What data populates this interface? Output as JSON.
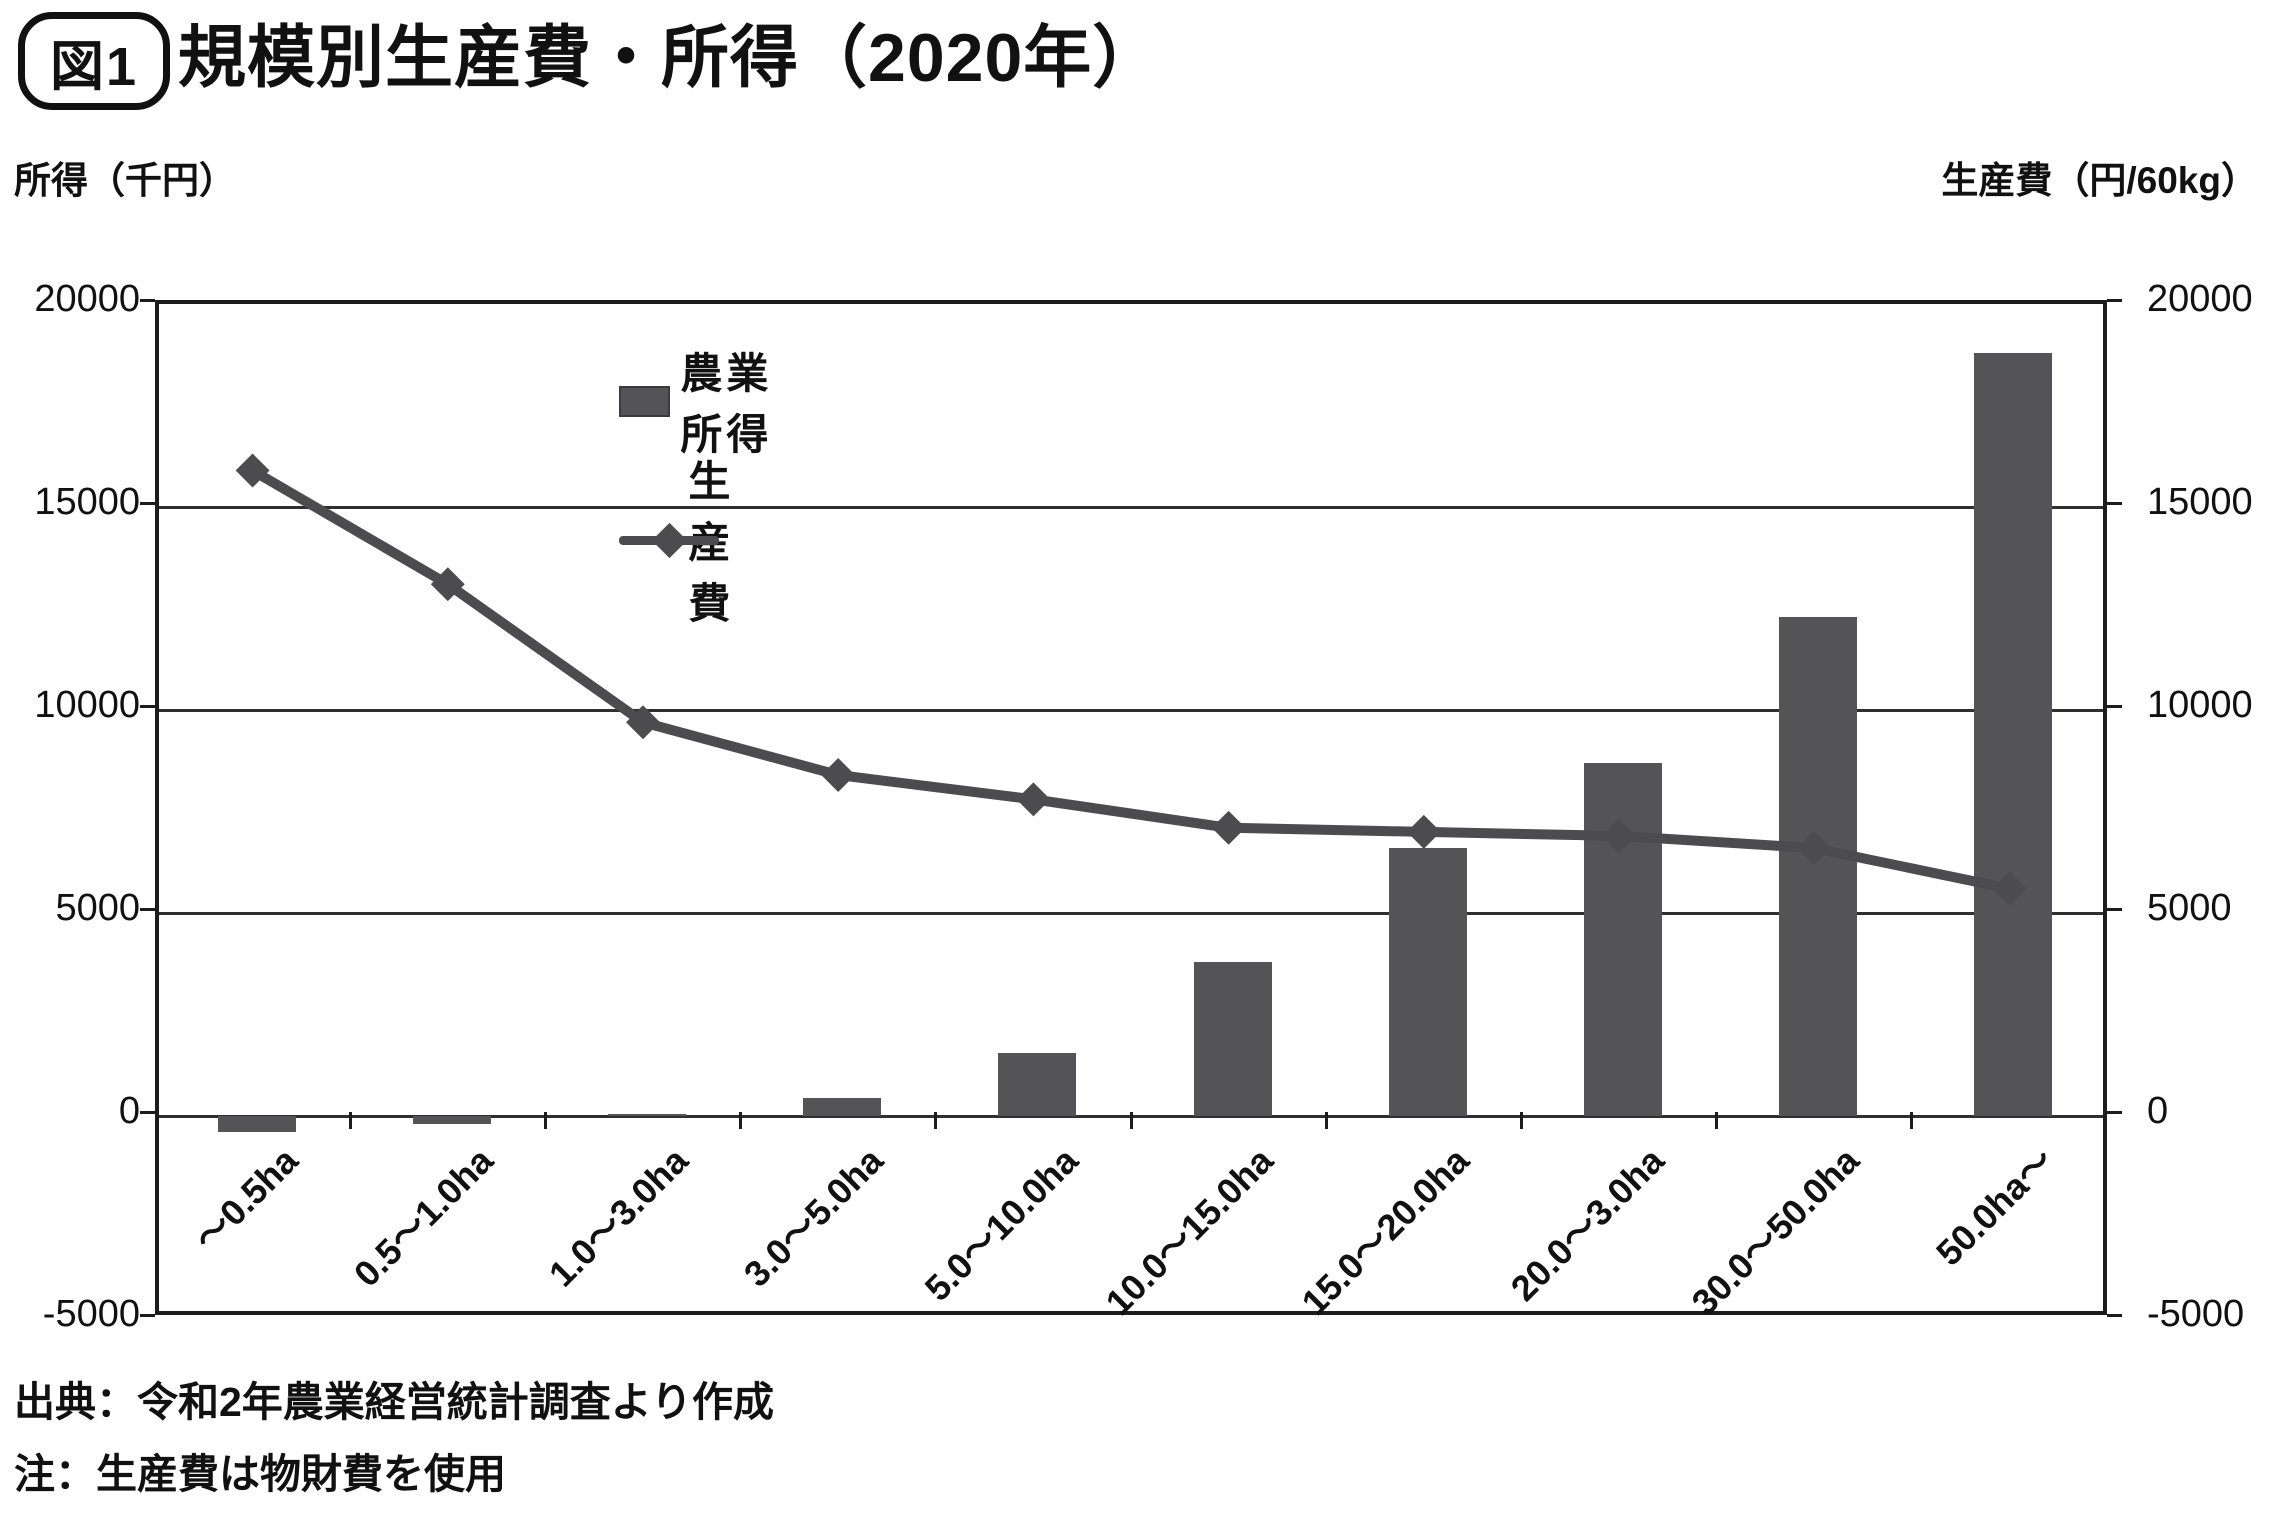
{
  "figure_label": "図1",
  "title": "規模別生産費・所得（2020年）",
  "left_axis_caption": "所得（千円）",
  "right_axis_caption": "生産費（円/60kg）",
  "source_note": "出典：令和2年農業経営統計調査より作成",
  "usage_note": "注：生産費は物財費を使用",
  "colors": {
    "bar": "#545457",
    "line": "#4c4c4f",
    "axis": "#1c1c1c",
    "grid": "#2f2f2f",
    "text": "#111111",
    "background": "#ffffff"
  },
  "chart_data": {
    "type": "bar",
    "subtype": "bar-and-line-dual-axis",
    "title": "規模別生産費・所得（2020年）",
    "categories": [
      "～0.5ha",
      "0.5～1.0ha",
      "1.0～3.0ha",
      "3.0～5.0ha",
      "5.0～10.0ha",
      "10.0～15.0ha",
      "15.0～20.0ha",
      "20.0～3.0ha",
      "30.0～50.0ha",
      "50.0ha～"
    ],
    "series": [
      {
        "name": "農業所得",
        "type": "bar",
        "axis": "left",
        "unit": "千円",
        "values": [
          -400,
          -200,
          50,
          450,
          1550,
          3800,
          6600,
          8700,
          12300,
          18800
        ]
      },
      {
        "name": "生産費",
        "type": "line",
        "marker": "diamond",
        "axis": "right",
        "unit": "円/60kg",
        "values": [
          15800,
          13000,
          9600,
          8300,
          7700,
          7000,
          6900,
          6800,
          6500,
          5500
        ]
      }
    ],
    "y_left": {
      "label": "所得（千円）",
      "min": -5000,
      "max": 20000,
      "tick_interval": 5000,
      "ticks": [
        "20000",
        "15000",
        "10000",
        "5000",
        "0",
        "-5000"
      ]
    },
    "y_right": {
      "label": "生産費（円/60kg）",
      "min": -5000,
      "max": 20000,
      "tick_interval": 5000,
      "ticks": [
        "20000",
        "15000",
        "10000",
        "5000",
        "0",
        "-5000"
      ]
    },
    "grid": true,
    "legend_position": "inside-top-left",
    "x_label_rotation_deg": 45
  }
}
